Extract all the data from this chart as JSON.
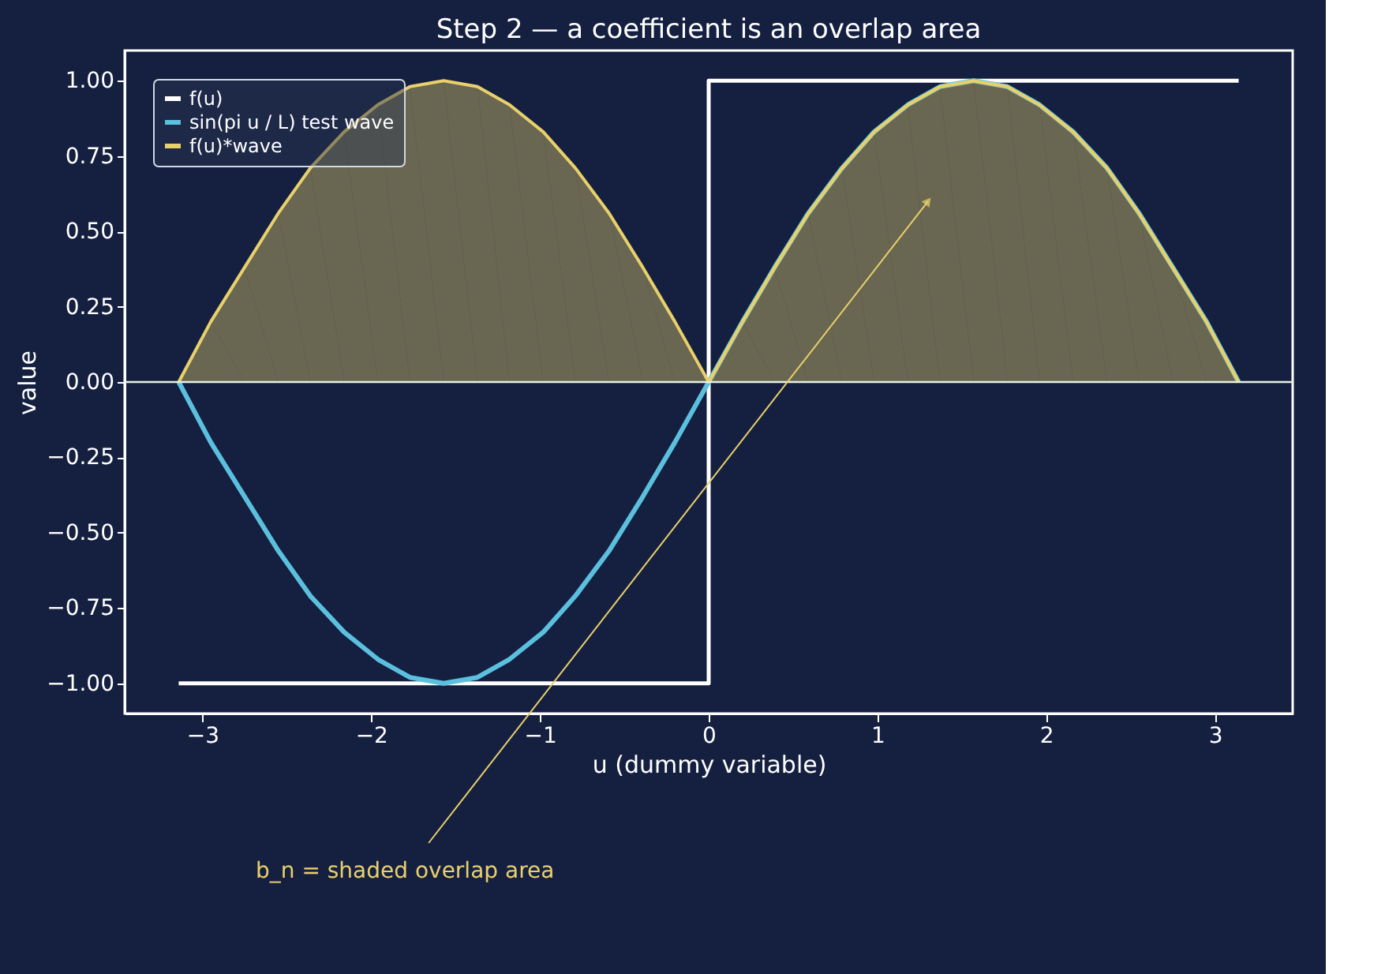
{
  "chart_data": {
    "type": "line",
    "title": "Step 2 — a coefficient is an overlap area",
    "xlabel": "u (dummy variable)",
    "ylabel": "value",
    "xlim": [
      -3.46,
      3.46
    ],
    "ylim": [
      -1.1,
      1.1
    ],
    "xticks": [
      {
        "value": -3,
        "label": "−3"
      },
      {
        "value": -2,
        "label": "−2"
      },
      {
        "value": -1,
        "label": "−1"
      },
      0,
      1,
      2,
      3
    ],
    "yticks": [
      {
        "value": -1,
        "label": "−1.00"
      },
      {
        "value": -0.75,
        "label": "−0.75"
      },
      {
        "value": -0.5,
        "label": "−0.50"
      },
      {
        "value": -0.25,
        "label": "−0.25"
      },
      {
        "value": 0,
        "label": "0.00"
      },
      {
        "value": 0.25,
        "label": "0.25"
      },
      {
        "value": 0.5,
        "label": "0.50"
      },
      {
        "value": 0.75,
        "label": "0.75"
      },
      {
        "value": 1,
        "label": "1.00"
      }
    ],
    "x": [
      -3.14,
      -2.95,
      -2.75,
      -2.55,
      -2.36,
      -2.16,
      -1.96,
      -1.77,
      -1.57,
      -1.37,
      -1.18,
      -0.98,
      -0.79,
      -0.59,
      -0.39,
      -0.2,
      0,
      0.2,
      0.39,
      0.59,
      0.79,
      0.98,
      1.18,
      1.37,
      1.57,
      1.77,
      1.96,
      2.16,
      2.36,
      2.55,
      2.75,
      2.95,
      3.14
    ],
    "series": [
      {
        "name": "f(u)",
        "type": "step",
        "color": "#ffffff",
        "x": [
          -3.14,
          0,
          3.14
        ],
        "values": [
          -1,
          1,
          1
        ]
      },
      {
        "name": "sin(pi u / L) test wave",
        "color": "#5bc0de",
        "values": [
          0,
          -0.2,
          -0.38,
          -0.56,
          -0.71,
          -0.83,
          -0.92,
          -0.98,
          -1,
          -0.98,
          -0.92,
          -0.83,
          -0.71,
          -0.56,
          -0.38,
          -0.2,
          0,
          0.2,
          0.38,
          0.56,
          0.71,
          0.83,
          0.92,
          0.98,
          1,
          0.98,
          0.92,
          0.83,
          0.71,
          0.56,
          0.38,
          0.2,
          0
        ]
      },
      {
        "name": "f(u)*wave",
        "type": "area",
        "color": "#e8d06a",
        "values": [
          0,
          0.2,
          0.38,
          0.56,
          0.71,
          0.83,
          0.92,
          0.98,
          1,
          0.98,
          0.92,
          0.83,
          0.71,
          0.56,
          0.38,
          0.2,
          0,
          0.2,
          0.38,
          0.56,
          0.71,
          0.83,
          0.92,
          0.98,
          1,
          0.98,
          0.92,
          0.83,
          0.71,
          0.56,
          0.38,
          0.2,
          0
        ]
      }
    ],
    "ref_lines": [
      {
        "axis": "y",
        "value": 0,
        "color": "#e8f0e0"
      }
    ],
    "annotations": [
      {
        "text": "b_n = shaded overlap area",
        "x": 1.3,
        "y": 0.6
      }
    ],
    "legend": "top left",
    "grid": false
  }
}
